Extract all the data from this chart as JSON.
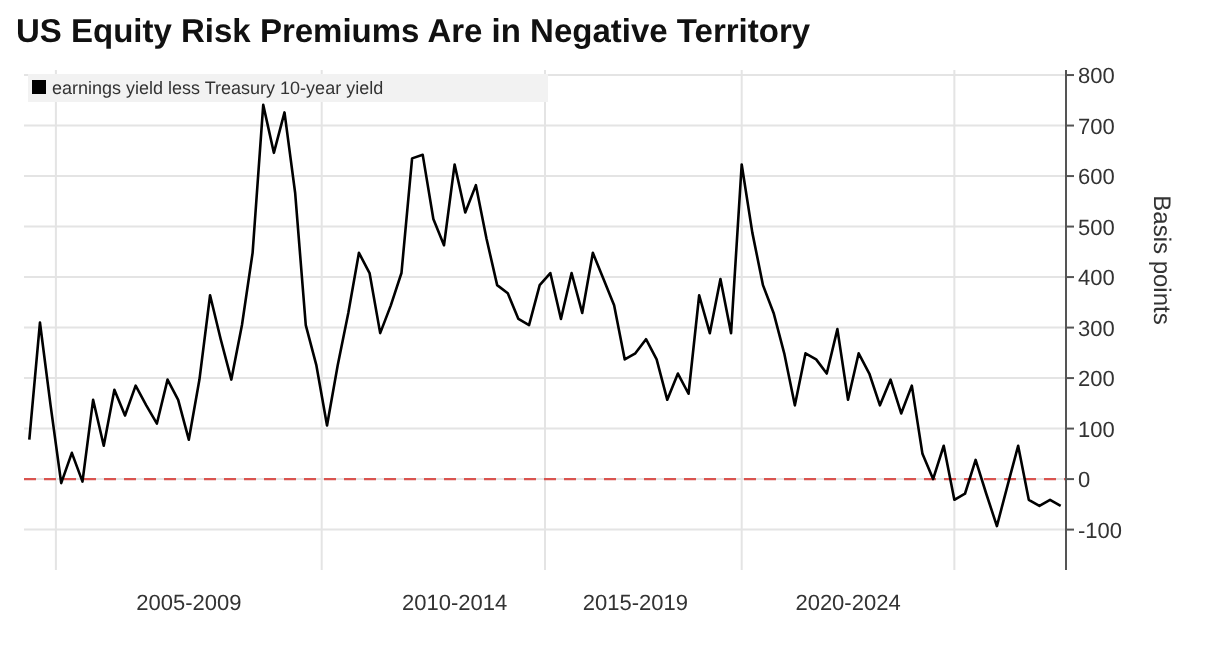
{
  "chart_data": {
    "type": "line",
    "title": "US Equity Risk Premiums Are in Negative Territory",
    "ylabel": "Basis points",
    "categories": [
      null,
      null,
      null,
      null,
      null,
      null,
      null,
      null,
      null,
      null,
      null,
      null,
      null,
      null,
      null,
      "2005-2009",
      null,
      null,
      null,
      null,
      null,
      null,
      null,
      null,
      null,
      null,
      null,
      null,
      null,
      null,
      null,
      null,
      null,
      null,
      null,
      null,
      null,
      null,
      null,
      null,
      "2010-2014",
      null,
      null,
      null,
      null,
      null,
      null,
      null,
      null,
      null,
      null,
      null,
      null,
      null,
      null,
      null,
      null,
      "2015-2019",
      null,
      null,
      null,
      null,
      null,
      null,
      null,
      null,
      null,
      null,
      null,
      null,
      null,
      null,
      null,
      null,
      null,
      null,
      null,
      "2020-2024",
      null,
      null,
      null,
      null,
      null,
      null,
      null,
      null,
      null,
      null,
      null,
      null,
      null,
      null,
      null,
      null,
      null,
      null,
      null,
      null
    ],
    "series": [
      {
        "name": "earnings yield less Treasury 10-year yield",
        "color": "#000000",
        "values": [
          78,
          310,
          146,
          -8,
          52,
          -5,
          157,
          66,
          177,
          126,
          185,
          146,
          110,
          197,
          157,
          78,
          197,
          364,
          277,
          197,
          305,
          448,
          741,
          646,
          726,
          567,
          305,
          225,
          106,
          225,
          329,
          448,
          408,
          289,
          344,
          408,
          635,
          642,
          515,
          463,
          623,
          528,
          582,
          476,
          384,
          368,
          317,
          305,
          384,
          408,
          317,
          408,
          329,
          448,
          396,
          344,
          237,
          249,
          277,
          237,
          157,
          209,
          169,
          364,
          289,
          396,
          289,
          623,
          488,
          384,
          329,
          249,
          146,
          249,
          237,
          209,
          297,
          157,
          249,
          209,
          146,
          197,
          130,
          185,
          50,
          0,
          66,
          -41,
          -29,
          38,
          -29,
          -93,
          -13,
          66,
          -41,
          -53,
          -41,
          -53
        ]
      }
    ],
    "ylim": [
      -180,
      810
    ],
    "yticks": [
      -100,
      0,
      100,
      200,
      300,
      400,
      500,
      600,
      700,
      800
    ],
    "ref_lines": [
      {
        "axis": "y",
        "value": 0,
        "color": "#d9534f",
        "line_style": "dashed"
      }
    ],
    "grid": true,
    "legend": "top left",
    "line_style": "solid",
    "marker": "none"
  }
}
